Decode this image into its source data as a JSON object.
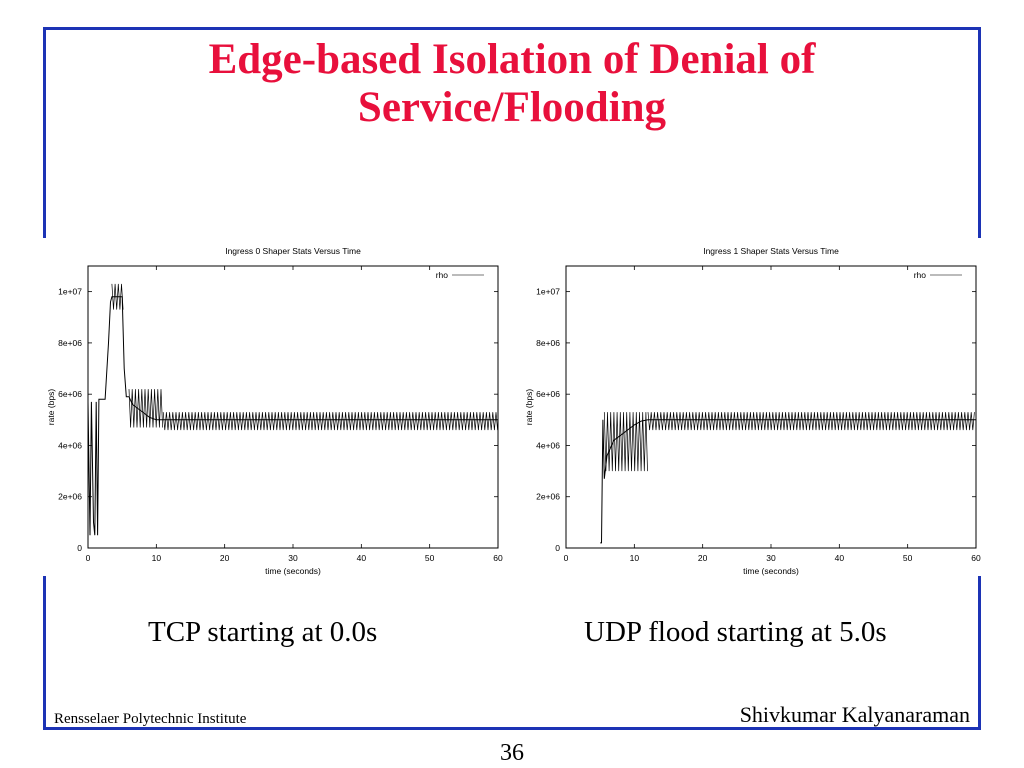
{
  "slide": {
    "title_line1": "Edge-based Isolation of Denial of",
    "title_line2": "Service/Flooding",
    "footer_left": "Rensselaer Polytechnic Institute",
    "footer_right": "Shivkumar Kalyanaraman",
    "page_number": "36",
    "colors": {
      "title": "#e8103c",
      "frame": "#1c33b5"
    }
  },
  "chart_data": [
    {
      "type": "line",
      "title": "Ingress 0 Shaper Stats Versus Time",
      "xlabel": "time (seconds)",
      "ylabel": "rate (bps)",
      "xlim": [
        0,
        60
      ],
      "ylim": [
        0,
        11000000
      ],
      "x_ticks": [
        0,
        10,
        20,
        30,
        40,
        50,
        60
      ],
      "x_tick_labels": [
        "0",
        "10",
        "20",
        "30",
        "40",
        "50",
        "60"
      ],
      "y_ticks": [
        0,
        2000000,
        4000000,
        6000000,
        8000000,
        10000000
      ],
      "y_tick_labels": [
        "0",
        "2e+06",
        "4e+06",
        "6e+06",
        "8e+06",
        "1e+07"
      ],
      "legend": {
        "position": "top-right",
        "entries": [
          "rho"
        ]
      },
      "series": [
        {
          "name": "rho",
          "x": [
            0,
            0.3,
            0.5,
            0.8,
            1.0,
            1.2,
            1.4,
            1.6,
            2.0,
            2.5,
            3.0,
            3.3,
            3.5,
            4.0,
            4.5,
            5.0,
            5.3,
            5.6,
            6.0,
            6.5,
            7.0,
            8.0,
            9.0,
            10.0,
            11.0,
            60
          ],
          "y": [
            5700000,
            500000,
            5700000,
            1000000,
            500000,
            5700000,
            500000,
            5800000,
            5800000,
            5800000,
            8000000,
            9600000,
            9800000,
            9800000,
            9800000,
            9800000,
            7000000,
            5900000,
            5900000,
            5600000,
            5500000,
            5300000,
            5100000,
            5000000,
            5000000,
            5000000
          ],
          "oscillation": [
            {
              "x_from": 3.5,
              "x_to": 5.3,
              "low": 9300000,
              "high": 10300000
            },
            {
              "x_from": 6.0,
              "x_to": 11.0,
              "low": 4700000,
              "high": 6200000
            },
            {
              "x_from": 11.0,
              "x_to": 60.0,
              "low": 4600000,
              "high": 5300000
            }
          ]
        }
      ]
    },
    {
      "type": "line",
      "title": "Ingress 1 Shaper Stats Versus Time",
      "xlabel": "time (seconds)",
      "ylabel": "rate (bps)",
      "xlim": [
        0,
        60
      ],
      "ylim": [
        0,
        11000000
      ],
      "x_ticks": [
        0,
        10,
        20,
        30,
        40,
        50,
        60
      ],
      "x_tick_labels": [
        "0",
        "10",
        "20",
        "30",
        "40",
        "50",
        "60"
      ],
      "y_ticks": [
        0,
        2000000,
        4000000,
        6000000,
        8000000,
        10000000
      ],
      "y_tick_labels": [
        "0",
        "2e+06",
        "4e+06",
        "6e+06",
        "8e+06",
        "1e+07"
      ],
      "legend": {
        "position": "top-right",
        "entries": [
          "rho"
        ]
      },
      "series": [
        {
          "name": "rho",
          "x": [
            5.0,
            5.2,
            5.4,
            5.6,
            6.0,
            6.5,
            7.0,
            8.0,
            9.0,
            10.0,
            11.0,
            12.0,
            60
          ],
          "y": [
            200000,
            200000,
            5000000,
            2700000,
            3600000,
            3900000,
            4200000,
            4400000,
            4600000,
            4800000,
            4950000,
            5000000,
            5000000
          ],
          "oscillation": [
            {
              "x_from": 5.6,
              "x_to": 12.0,
              "low": 3000000,
              "high": 5300000
            },
            {
              "x_from": 12.0,
              "x_to": 60.0,
              "low": 4600000,
              "high": 5300000
            }
          ]
        }
      ]
    }
  ],
  "captions": {
    "left": "TCP starting at 0.0s",
    "right": "UDP flood starting at 5.0s"
  }
}
